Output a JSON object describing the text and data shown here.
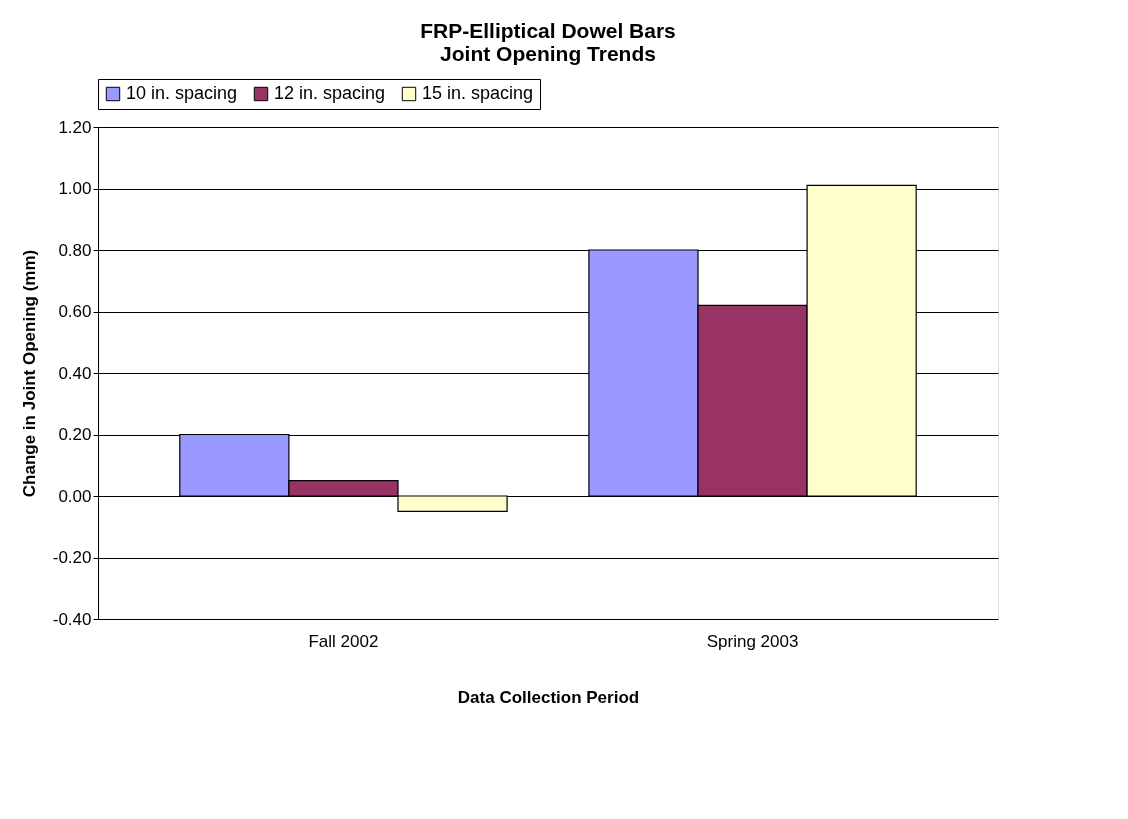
{
  "chart_data": {
    "type": "bar",
    "title": "FRP-Elliptical Dowel Bars\nJoint Opening Trends",
    "xlabel": "Data Collection Period",
    "ylabel": "Change in Joint Opening (mm)",
    "categories": [
      "Fall 2002",
      "Spring 2003"
    ],
    "series": [
      {
        "name": "10 in. spacing",
        "color": "#9999ff",
        "values": [
          0.2,
          0.8
        ]
      },
      {
        "name": "12 in. spacing",
        "color": "#993366",
        "values": [
          0.05,
          0.62
        ]
      },
      {
        "name": "15 in. spacing",
        "color": "#ffffcc",
        "values": [
          -0.05,
          1.01
        ]
      }
    ],
    "ylim": [
      -0.4,
      1.2
    ],
    "yticks": [
      {
        "value": -0.4,
        "label": "-0.40"
      },
      {
        "value": -0.2,
        "label": "-0.20"
      },
      {
        "value": 0,
        "label": "0.00"
      },
      {
        "value": 0.2,
        "label": "0.20"
      },
      {
        "value": 0.4,
        "label": "0.40"
      },
      {
        "value": 0.6,
        "label": "0.60"
      },
      {
        "value": 0.8,
        "label": "0.80"
      },
      {
        "value": 1.0,
        "label": "1.00"
      },
      {
        "value": 1.2,
        "label": "1.20"
      }
    ],
    "grid": "y",
    "legend": "top"
  }
}
